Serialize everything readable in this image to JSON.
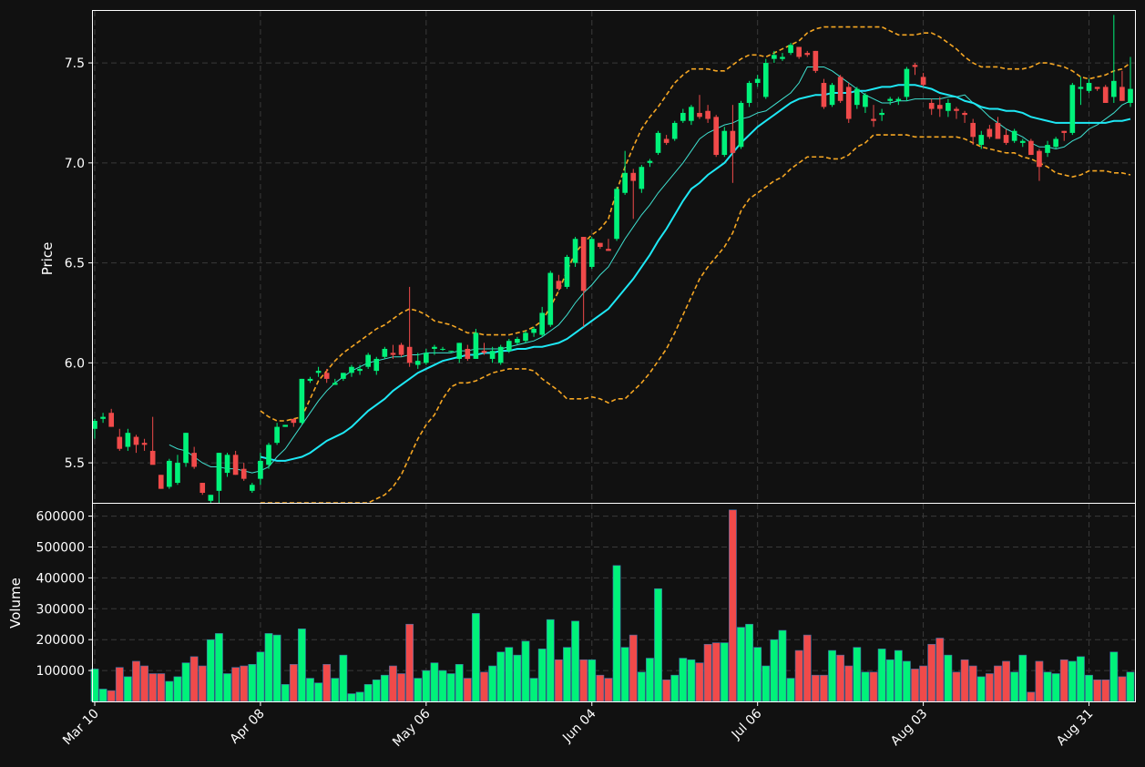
{
  "chart_data": {
    "type": "candlestick",
    "colors": {
      "background": "#111111",
      "up": "#00f27a",
      "down": "#f04a4a",
      "ma_short": "#3fe0d0",
      "ma_long": "#1ee8f5",
      "bollinger": "#f5a623",
      "grid": "#3a3a3a",
      "axis": "#ffffff"
    },
    "price_panel": {
      "ylabel": "Price",
      "ylim": [
        5.3,
        7.76
      ],
      "yticks": [
        5.5,
        6.0,
        6.5,
        7.0,
        7.5
      ],
      "ytick_labels": [
        "5.5",
        "6.0",
        "6.5",
        "7.0",
        "7.5"
      ],
      "grid": true
    },
    "volume_panel": {
      "ylabel": "Volume",
      "ylim": [
        0,
        640000
      ],
      "yticks": [
        100000,
        200000,
        300000,
        400000,
        500000,
        600000
      ],
      "ytick_labels": [
        "100000",
        "200000",
        "300000",
        "400000",
        "500000",
        "600000"
      ],
      "grid": true
    },
    "xaxis": {
      "ticks": [
        {
          "label": "Mar 10",
          "index": 0
        },
        {
          "label": "Apr 08",
          "index": 20
        },
        {
          "label": "May 06",
          "index": 40
        },
        {
          "label": "Jun 04",
          "index": 60
        },
        {
          "label": "Jul 06",
          "index": 80
        },
        {
          "label": "Aug 03",
          "index": 100
        },
        {
          "label": "Aug 31",
          "index": 120
        }
      ]
    },
    "candles": [
      [
        5.67,
        5.72,
        5.62,
        5.71,
        105000
      ],
      [
        5.72,
        5.75,
        5.7,
        5.73,
        40000
      ],
      [
        5.75,
        5.77,
        5.68,
        5.68,
        35000
      ],
      [
        5.63,
        5.67,
        5.56,
        5.57,
        110000
      ],
      [
        5.58,
        5.67,
        5.56,
        5.65,
        80000
      ],
      [
        5.63,
        5.64,
        5.55,
        5.59,
        130000
      ],
      [
        5.6,
        5.62,
        5.56,
        5.59,
        115000
      ],
      [
        5.56,
        5.73,
        5.51,
        5.49,
        90000
      ],
      [
        5.44,
        5.44,
        5.37,
        5.37,
        90000
      ],
      [
        5.38,
        5.52,
        5.37,
        5.51,
        65000
      ],
      [
        5.4,
        5.54,
        5.39,
        5.5,
        80000
      ],
      [
        5.5,
        5.65,
        5.48,
        5.65,
        125000
      ],
      [
        5.55,
        5.58,
        5.47,
        5.48,
        145000
      ],
      [
        5.4,
        5.4,
        5.34,
        5.35,
        115000
      ],
      [
        5.31,
        5.34,
        5.3,
        5.34,
        200000
      ],
      [
        5.36,
        5.55,
        5.3,
        5.55,
        220000
      ],
      [
        5.45,
        5.55,
        5.43,
        5.54,
        90000
      ],
      [
        5.54,
        5.56,
        5.44,
        5.44,
        110000
      ],
      [
        5.47,
        5.5,
        5.41,
        5.42,
        115000
      ],
      [
        5.36,
        5.4,
        5.35,
        5.39,
        120000
      ],
      [
        5.42,
        5.55,
        5.39,
        5.51,
        160000
      ],
      [
        5.49,
        5.6,
        5.47,
        5.59,
        220000
      ],
      [
        5.6,
        5.7,
        5.59,
        5.68,
        215000
      ],
      [
        5.68,
        5.69,
        5.68,
        5.69,
        55000
      ],
      [
        5.72,
        5.72,
        5.68,
        5.7,
        120000
      ],
      [
        5.7,
        5.92,
        5.69,
        5.92,
        235000
      ],
      [
        5.91,
        5.93,
        5.9,
        5.92,
        75000
      ],
      [
        5.95,
        5.98,
        5.93,
        5.96,
        60000
      ],
      [
        5.95,
        5.97,
        5.9,
        5.92,
        120000
      ],
      [
        5.89,
        5.92,
        5.89,
        5.9,
        75000
      ],
      [
        5.92,
        5.95,
        5.91,
        5.95,
        150000
      ],
      [
        5.95,
        5.99,
        5.93,
        5.98,
        25000
      ],
      [
        5.96,
        5.99,
        5.94,
        5.97,
        30000
      ],
      [
        5.98,
        6.05,
        5.97,
        6.04,
        55000
      ],
      [
        5.96,
        6.03,
        5.94,
        6.02,
        70000
      ],
      [
        6.03,
        6.08,
        6.02,
        6.07,
        85000
      ],
      [
        6.05,
        6.09,
        6.02,
        6.04,
        115000
      ],
      [
        6.09,
        6.1,
        6.03,
        6.04,
        90000
      ],
      [
        6.08,
        6.38,
        5.98,
        6.0,
        250000
      ],
      [
        5.99,
        6.05,
        5.97,
        6.01,
        75000
      ],
      [
        6.0,
        6.07,
        5.99,
        6.05,
        100000
      ],
      [
        6.07,
        6.09,
        6.04,
        6.08,
        125000
      ],
      [
        6.07,
        6.08,
        6.06,
        6.07,
        100000
      ],
      [
        6.06,
        6.06,
        6.05,
        6.06,
        90000
      ],
      [
        6.02,
        6.1,
        6.0,
        6.1,
        120000
      ],
      [
        6.07,
        6.09,
        6.01,
        6.02,
        75000
      ],
      [
        6.02,
        6.17,
        6.02,
        6.15,
        285000
      ],
      [
        6.06,
        6.1,
        6.04,
        6.05,
        95000
      ],
      [
        6.02,
        6.08,
        6.0,
        6.06,
        115000
      ],
      [
        6.0,
        6.09,
        5.99,
        6.08,
        160000
      ],
      [
        6.06,
        6.12,
        6.05,
        6.11,
        175000
      ],
      [
        6.1,
        6.13,
        6.09,
        6.12,
        150000
      ],
      [
        6.11,
        6.16,
        6.1,
        6.15,
        195000
      ],
      [
        6.15,
        6.18,
        6.13,
        6.17,
        75000
      ],
      [
        6.14,
        6.28,
        6.13,
        6.25,
        170000
      ],
      [
        6.19,
        6.46,
        6.18,
        6.45,
        265000
      ],
      [
        6.41,
        6.44,
        6.36,
        6.37,
        135000
      ],
      [
        6.38,
        6.54,
        6.37,
        6.53,
        175000
      ],
      [
        6.5,
        6.63,
        6.48,
        6.62,
        260000
      ],
      [
        6.63,
        6.63,
        6.18,
        6.36,
        135000
      ],
      [
        6.48,
        6.63,
        6.47,
        6.62,
        135000
      ],
      [
        6.6,
        6.6,
        6.57,
        6.58,
        85000
      ],
      [
        6.57,
        6.62,
        6.56,
        6.56,
        75000
      ],
      [
        6.62,
        6.88,
        6.61,
        6.87,
        440000
      ],
      [
        6.85,
        7.06,
        6.84,
        6.95,
        175000
      ],
      [
        6.95,
        6.97,
        6.72,
        6.91,
        215000
      ],
      [
        6.87,
        6.99,
        6.85,
        6.98,
        95000
      ],
      [
        7.0,
        7.02,
        6.98,
        7.01,
        140000
      ],
      [
        7.05,
        7.16,
        7.04,
        7.15,
        365000
      ],
      [
        7.12,
        7.14,
        7.09,
        7.1,
        70000
      ],
      [
        7.12,
        7.21,
        7.11,
        7.2,
        85000
      ],
      [
        7.21,
        7.27,
        7.2,
        7.25,
        140000
      ],
      [
        7.21,
        7.29,
        7.19,
        7.28,
        135000
      ],
      [
        7.25,
        7.34,
        7.22,
        7.23,
        125000
      ],
      [
        7.26,
        7.29,
        7.2,
        7.22,
        185000
      ],
      [
        7.23,
        7.24,
        7.03,
        7.04,
        190000
      ],
      [
        7.04,
        7.18,
        7.03,
        7.16,
        190000
      ],
      [
        7.16,
        7.29,
        6.9,
        7.05,
        620000
      ],
      [
        7.08,
        7.31,
        7.07,
        7.3,
        240000
      ],
      [
        7.3,
        7.41,
        7.28,
        7.4,
        250000
      ],
      [
        7.4,
        7.44,
        7.38,
        7.42,
        175000
      ],
      [
        7.33,
        7.52,
        7.32,
        7.5,
        115000
      ],
      [
        7.52,
        7.56,
        7.5,
        7.54,
        200000
      ],
      [
        7.52,
        7.55,
        7.51,
        7.53,
        230000
      ],
      [
        7.55,
        7.6,
        7.54,
        7.59,
        75000
      ],
      [
        7.58,
        7.58,
        7.52,
        7.53,
        165000
      ],
      [
        7.55,
        7.56,
        7.53,
        7.54,
        215000
      ],
      [
        7.56,
        7.56,
        7.45,
        7.46,
        85000
      ],
      [
        7.4,
        7.42,
        7.27,
        7.28,
        85000
      ],
      [
        7.29,
        7.4,
        7.28,
        7.39,
        165000
      ],
      [
        7.43,
        7.44,
        7.3,
        7.31,
        150000
      ],
      [
        7.38,
        7.4,
        7.2,
        7.22,
        115000
      ],
      [
        7.29,
        7.38,
        7.27,
        7.37,
        175000
      ],
      [
        7.28,
        7.35,
        7.25,
        7.34,
        95000
      ],
      [
        7.22,
        7.29,
        7.18,
        7.21,
        95000
      ],
      [
        7.24,
        7.27,
        7.21,
        7.25,
        170000
      ],
      [
        7.31,
        7.33,
        7.29,
        7.32,
        135000
      ],
      [
        7.31,
        7.33,
        7.29,
        7.32,
        165000
      ],
      [
        7.33,
        7.48,
        7.31,
        7.47,
        130000
      ],
      [
        7.49,
        7.5,
        7.44,
        7.48,
        105000
      ],
      [
        7.43,
        7.45,
        7.38,
        7.39,
        115000
      ],
      [
        7.3,
        7.32,
        7.24,
        7.27,
        185000
      ],
      [
        7.29,
        7.33,
        7.23,
        7.27,
        205000
      ],
      [
        7.26,
        7.32,
        7.23,
        7.3,
        150000
      ],
      [
        7.27,
        7.28,
        7.22,
        7.26,
        95000
      ],
      [
        7.25,
        7.26,
        7.2,
        7.24,
        135000
      ],
      [
        7.2,
        7.22,
        7.09,
        7.13,
        115000
      ],
      [
        7.09,
        7.16,
        7.07,
        7.14,
        80000
      ],
      [
        7.17,
        7.19,
        7.12,
        7.13,
        90000
      ],
      [
        7.2,
        7.23,
        7.12,
        7.12,
        115000
      ],
      [
        7.14,
        7.17,
        7.09,
        7.1,
        130000
      ],
      [
        7.11,
        7.17,
        7.1,
        7.16,
        95000
      ],
      [
        7.1,
        7.12,
        7.08,
        7.11,
        150000
      ],
      [
        7.11,
        7.12,
        7.04,
        7.04,
        30000
      ],
      [
        7.06,
        7.07,
        6.91,
        6.98,
        130000
      ],
      [
        7.05,
        7.11,
        7.03,
        7.09,
        95000
      ],
      [
        7.08,
        7.13,
        7.07,
        7.12,
        90000
      ],
      [
        7.16,
        7.16,
        7.11,
        7.15,
        135000
      ],
      [
        7.15,
        7.4,
        7.14,
        7.39,
        130000
      ],
      [
        7.37,
        7.43,
        7.29,
        7.38,
        145000
      ],
      [
        7.36,
        7.42,
        7.35,
        7.4,
        85000
      ],
      [
        7.38,
        7.38,
        7.36,
        7.37,
        70000
      ],
      [
        7.38,
        7.39,
        7.3,
        7.3,
        70000
      ],
      [
        7.33,
        7.74,
        7.3,
        7.41,
        160000
      ],
      [
        7.38,
        7.46,
        7.31,
        7.31,
        80000
      ],
      [
        7.3,
        7.53,
        7.28,
        7.37,
        95000
      ]
    ],
    "ma_short": [
      null,
      null,
      null,
      null,
      null,
      null,
      null,
      null,
      null,
      5.59,
      5.57,
      5.56,
      5.53,
      5.5,
      5.48,
      5.48,
      5.47,
      5.47,
      5.46,
      5.45,
      5.46,
      5.48,
      5.53,
      5.57,
      5.63,
      5.69,
      5.75,
      5.81,
      5.86,
      5.9,
      5.93,
      5.96,
      5.98,
      6.0,
      6.01,
      6.02,
      6.03,
      6.03,
      6.04,
      6.04,
      6.05,
      6.05,
      6.05,
      6.05,
      6.06,
      6.06,
      6.07,
      6.07,
      6.07,
      6.07,
      6.08,
      6.09,
      6.1,
      6.11,
      6.13,
      6.16,
      6.19,
      6.24,
      6.3,
      6.35,
      6.39,
      6.44,
      6.48,
      6.55,
      6.62,
      6.68,
      6.74,
      6.79,
      6.85,
      6.9,
      6.95,
      7.0,
      7.06,
      7.12,
      7.15,
      7.17,
      7.19,
      7.2,
      7.22,
      7.23,
      7.25,
      7.26,
      7.29,
      7.32,
      7.35,
      7.4,
      7.48,
      7.48,
      7.48,
      7.46,
      7.43,
      7.4,
      7.37,
      7.34,
      7.32,
      7.3,
      7.3,
      7.31,
      7.31,
      7.32,
      7.32,
      7.32,
      7.32,
      7.33,
      7.33,
      7.34,
      7.3,
      7.27,
      7.23,
      7.2,
      7.17,
      7.15,
      7.13,
      7.1,
      7.08,
      7.08,
      7.07,
      7.08,
      7.11,
      7.13,
      7.17,
      7.19,
      7.22,
      7.25,
      7.29,
      7.31
    ],
    "ma_long": [
      null,
      null,
      null,
      null,
      null,
      null,
      null,
      null,
      null,
      null,
      null,
      null,
      null,
      null,
      null,
      null,
      null,
      null,
      null,
      null,
      5.53,
      5.52,
      5.51,
      5.51,
      5.52,
      5.53,
      5.55,
      5.58,
      5.61,
      5.63,
      5.65,
      5.68,
      5.72,
      5.76,
      5.79,
      5.82,
      5.86,
      5.89,
      5.92,
      5.95,
      5.97,
      5.99,
      6.01,
      6.02,
      6.03,
      6.04,
      6.04,
      6.05,
      6.05,
      6.06,
      6.06,
      6.07,
      6.07,
      6.08,
      6.08,
      6.09,
      6.1,
      6.12,
      6.15,
      6.18,
      6.21,
      6.24,
      6.27,
      6.32,
      6.37,
      6.42,
      6.48,
      6.54,
      6.61,
      6.67,
      6.74,
      6.81,
      6.87,
      6.9,
      6.94,
      6.97,
      7.0,
      7.05,
      7.1,
      7.14,
      7.18,
      7.21,
      7.24,
      7.27,
      7.3,
      7.32,
      7.33,
      7.34,
      7.34,
      7.35,
      7.35,
      7.35,
      7.36,
      7.36,
      7.37,
      7.38,
      7.38,
      7.39,
      7.39,
      7.39,
      7.38,
      7.37,
      7.35,
      7.34,
      7.33,
      7.31,
      7.3,
      7.28,
      7.27,
      7.27,
      7.26,
      7.26,
      7.25,
      7.23,
      7.22,
      7.21,
      7.2,
      7.2,
      7.2,
      7.2,
      7.2,
      7.2,
      7.2,
      7.21,
      7.21,
      7.22
    ],
    "boll_upper": [
      null,
      null,
      null,
      null,
      null,
      null,
      null,
      null,
      null,
      null,
      null,
      null,
      null,
      null,
      null,
      null,
      null,
      null,
      null,
      null,
      5.76,
      5.73,
      5.71,
      5.71,
      5.72,
      5.73,
      5.82,
      5.91,
      5.96,
      6.01,
      6.05,
      6.08,
      6.11,
      6.14,
      6.17,
      6.19,
      6.22,
      6.25,
      6.27,
      6.26,
      6.24,
      6.21,
      6.2,
      6.19,
      6.17,
      6.15,
      6.15,
      6.14,
      6.14,
      6.14,
      6.14,
      6.15,
      6.16,
      6.18,
      6.21,
      6.28,
      6.36,
      6.46,
      6.55,
      6.6,
      6.64,
      6.67,
      6.72,
      6.86,
      6.98,
      7.08,
      7.17,
      7.23,
      7.28,
      7.34,
      7.4,
      7.44,
      7.47,
      7.47,
      7.47,
      7.46,
      7.46,
      7.49,
      7.52,
      7.54,
      7.54,
      7.53,
      7.55,
      7.57,
      7.59,
      7.61,
      7.65,
      7.67,
      7.68,
      7.68,
      7.68,
      7.68,
      7.68,
      7.68,
      7.68,
      7.68,
      7.66,
      7.64,
      7.64,
      7.64,
      7.65,
      7.65,
      7.63,
      7.6,
      7.57,
      7.53,
      7.5,
      7.48,
      7.48,
      7.48,
      7.47,
      7.47,
      7.47,
      7.48,
      7.5,
      7.5,
      7.49,
      7.48,
      7.46,
      7.43,
      7.42,
      7.43,
      7.44,
      7.46,
      7.47,
      7.5
    ],
    "boll_lower": [
      null,
      null,
      null,
      null,
      null,
      null,
      null,
      null,
      null,
      null,
      null,
      null,
      null,
      null,
      null,
      null,
      null,
      null,
      null,
      null,
      5.29,
      5.29,
      5.28,
      5.27,
      5.22,
      5.17,
      5.14,
      5.14,
      5.14,
      5.16,
      5.2,
      5.24,
      5.27,
      5.3,
      5.32,
      5.34,
      5.38,
      5.44,
      5.53,
      5.62,
      5.69,
      5.74,
      5.82,
      5.88,
      5.9,
      5.9,
      5.91,
      5.93,
      5.95,
      5.96,
      5.97,
      5.97,
      5.97,
      5.96,
      5.92,
      5.89,
      5.86,
      5.82,
      5.82,
      5.82,
      5.83,
      5.82,
      5.8,
      5.82,
      5.82,
      5.86,
      5.9,
      5.95,
      6.01,
      6.07,
      6.15,
      6.24,
      6.33,
      6.42,
      6.48,
      6.53,
      6.58,
      6.65,
      6.76,
      6.82,
      6.85,
      6.88,
      6.91,
      6.93,
      6.97,
      7.0,
      7.03,
      7.03,
      7.03,
      7.02,
      7.02,
      7.04,
      7.08,
      7.1,
      7.14,
      7.14,
      7.14,
      7.14,
      7.14,
      7.13,
      7.13,
      7.13,
      7.13,
      7.13,
      7.13,
      7.12,
      7.1,
      7.08,
      7.07,
      7.06,
      7.05,
      7.05,
      7.03,
      7.02,
      7.0,
      6.98,
      6.95,
      6.94,
      6.93,
      6.94,
      6.96,
      6.96,
      6.96,
      6.95,
      6.95,
      6.94
    ]
  }
}
